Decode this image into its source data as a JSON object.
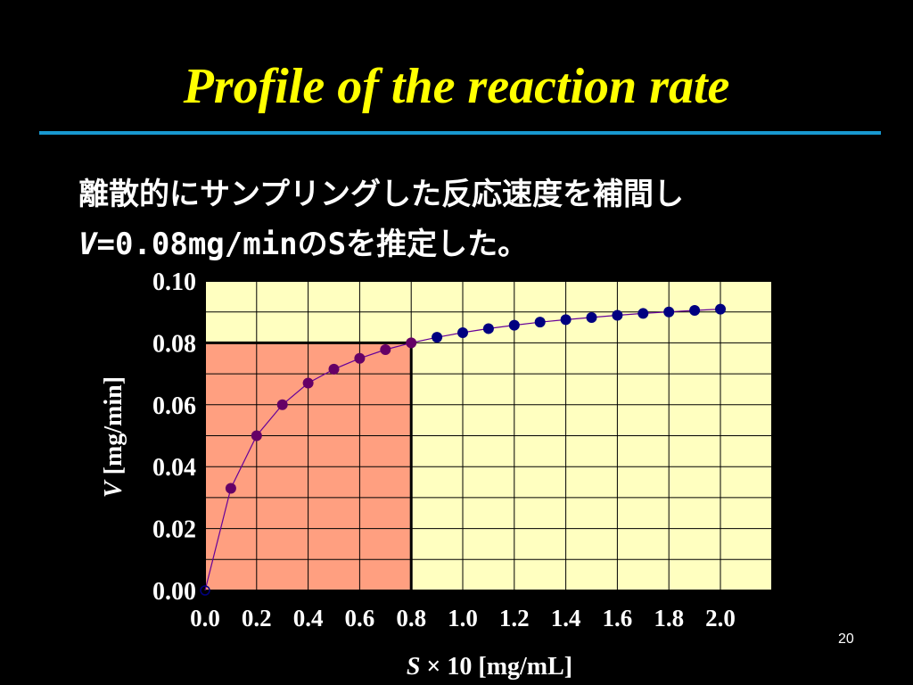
{
  "slide": {
    "title": "Profile of the reaction rate",
    "line1": "離散的にサンプリングした反応速度を補間し",
    "line2_v": "V",
    "line2_eq": "=0.08mg/min",
    "line2_of": "の",
    "line2_s": "S",
    "line2_rest": "を推定した。",
    "page_number": "20"
  },
  "chart_data": {
    "type": "scatter",
    "xlabel_var": "S",
    "xlabel_rest": " × 10 [mg/mL]",
    "ylabel_var": "V",
    "ylabel_rest": " [mg/min]",
    "xlim": [
      0.0,
      2.2
    ],
    "ylim": [
      0.0,
      0.1
    ],
    "x_ticks": [
      "0.0",
      "0.2",
      "0.4",
      "0.6",
      "0.8",
      "1.0",
      "1.2",
      "1.4",
      "1.6",
      "1.8",
      "2.0"
    ],
    "y_ticks": [
      "0.00",
      "0.02",
      "0.04",
      "0.06",
      "0.08",
      "0.10"
    ],
    "grid": true,
    "highlight_region": {
      "x_max": 0.8,
      "y_max": 0.08
    },
    "series": [
      {
        "x": [
          0.0,
          0.1,
          0.2,
          0.3,
          0.4,
          0.5,
          0.6,
          0.7,
          0.8,
          0.9,
          1.0,
          1.1,
          1.2,
          1.3,
          1.4,
          1.5,
          1.6,
          1.7,
          1.8,
          1.9,
          2.0
        ],
        "y": [
          0.0,
          0.033,
          0.05,
          0.06,
          0.067,
          0.0715,
          0.075,
          0.0778,
          0.08,
          0.0818,
          0.0833,
          0.0846,
          0.0857,
          0.0867,
          0.0875,
          0.0882,
          0.0889,
          0.0895,
          0.09,
          0.0905,
          0.0909
        ]
      }
    ],
    "colors": {
      "plot_bg": "#ffffc0",
      "highlight": "#ff9f80",
      "grid": "#000000",
      "marker_low": "#660066",
      "marker_high": "#000080",
      "line": "#660099",
      "axis_text": "#ffffff"
    }
  }
}
